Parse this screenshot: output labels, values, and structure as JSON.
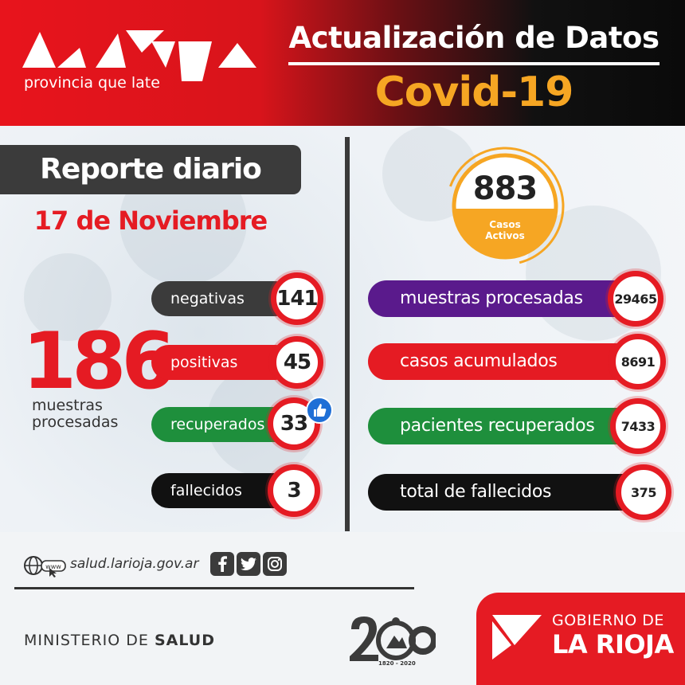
{
  "header": {
    "logo_tagline": "provincia que late",
    "title": "Actualización de Datos",
    "subtitle": "Covid-19"
  },
  "daily": {
    "label": "Reporte diario",
    "date": "17 de Noviembre",
    "total_value": "186",
    "total_label_1": "muestras",
    "total_label_2": "procesadas",
    "items": [
      {
        "label": "negativas",
        "value": "141",
        "color": "#3b3b3b"
      },
      {
        "label": "positivas",
        "value": "45",
        "color": "#e51b23"
      },
      {
        "label": "recuperados",
        "value": "33",
        "color": "#1e8f3c"
      },
      {
        "label": "fallecidos",
        "value": "3",
        "color": "#111111"
      }
    ]
  },
  "active": {
    "value": "883",
    "label_1": "Casos",
    "label_2": "Activos",
    "color": "#f6a623"
  },
  "cumulative": {
    "items": [
      {
        "label": "muestras procesadas",
        "value": "29465",
        "color": "#5a1a8c"
      },
      {
        "label": "casos acumulados",
        "value": "8691",
        "color": "#e51b23"
      },
      {
        "label": "pacientes recuperados",
        "value": "7433",
        "color": "#1e8f3c"
      },
      {
        "label": "total de fallecidos",
        "value": "375",
        "color": "#111111"
      }
    ]
  },
  "footer": {
    "website": "salud.larioja.gov.ar",
    "web_badge": "www",
    "ministry_prefix": "MINISTERIO DE ",
    "ministry_name": "SALUD",
    "emblem_years": "1820 - 2020",
    "gov_line_1": "GOBIERNO DE",
    "gov_line_2": "LA RIOJA",
    "social": [
      "facebook-icon",
      "twitter-icon",
      "instagram-icon"
    ]
  }
}
